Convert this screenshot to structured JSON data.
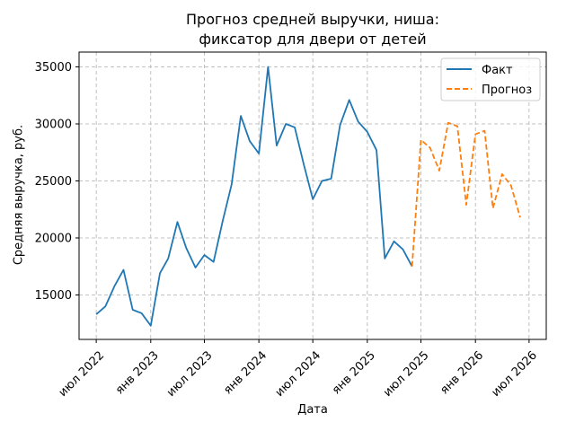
{
  "chart_data": {
    "type": "line",
    "title_lines": [
      "Прогноз средней выручки, ниша:",
      "фиксатор для двери от детей"
    ],
    "xlabel": "Дата",
    "ylabel": "Средняя выручка, руб.",
    "xlim": [
      "2022-05-04",
      "2026-08-28"
    ],
    "ylim": [
      11100,
      36300
    ],
    "grid": true,
    "legend_position": "top-right",
    "x_ticks": [
      {
        "date": "2022-07-01",
        "label": "июл 2022"
      },
      {
        "date": "2023-01-01",
        "label": "янв 2023"
      },
      {
        "date": "2023-07-01",
        "label": "июл 2023"
      },
      {
        "date": "2024-01-01",
        "label": "янв 2024"
      },
      {
        "date": "2024-07-01",
        "label": "июл 2024"
      },
      {
        "date": "2025-01-01",
        "label": "янв 2025"
      },
      {
        "date": "2025-07-01",
        "label": "июл 2025"
      },
      {
        "date": "2026-01-01",
        "label": "янв 2026"
      },
      {
        "date": "2026-07-01",
        "label": "июл 2026"
      }
    ],
    "y_ticks": [
      {
        "value": 15000,
        "label": "15000"
      },
      {
        "value": 20000,
        "label": "20000"
      },
      {
        "value": 25000,
        "label": "25000"
      },
      {
        "value": 30000,
        "label": "30000"
      },
      {
        "value": 35000,
        "label": "35000"
      }
    ],
    "series": [
      {
        "name": "Факт",
        "color": "#1f77b4",
        "style": "solid",
        "points": [
          {
            "x": "2022-07-01",
            "y": 13300
          },
          {
            "x": "2022-08-01",
            "y": 14000
          },
          {
            "x": "2022-09-01",
            "y": 15800
          },
          {
            "x": "2022-10-01",
            "y": 17200
          },
          {
            "x": "2022-11-01",
            "y": 13700
          },
          {
            "x": "2022-12-01",
            "y": 13400
          },
          {
            "x": "2023-01-01",
            "y": 12300
          },
          {
            "x": "2023-02-01",
            "y": 16900
          },
          {
            "x": "2023-03-01",
            "y": 18200
          },
          {
            "x": "2023-04-01",
            "y": 21400
          },
          {
            "x": "2023-05-01",
            "y": 19100
          },
          {
            "x": "2023-06-01",
            "y": 17400
          },
          {
            "x": "2023-07-01",
            "y": 18500
          },
          {
            "x": "2023-08-01",
            "y": 17900
          },
          {
            "x": "2023-09-01",
            "y": 21500
          },
          {
            "x": "2023-10-01",
            "y": 24700
          },
          {
            "x": "2023-11-01",
            "y": 30700
          },
          {
            "x": "2023-12-01",
            "y": 28500
          },
          {
            "x": "2024-01-01",
            "y": 27400
          },
          {
            "x": "2024-02-01",
            "y": 35000
          },
          {
            "x": "2024-03-01",
            "y": 28100
          },
          {
            "x": "2024-04-01",
            "y": 30000
          },
          {
            "x": "2024-05-01",
            "y": 29700
          },
          {
            "x": "2024-06-01",
            "y": 26400
          },
          {
            "x": "2024-07-01",
            "y": 23400
          },
          {
            "x": "2024-08-01",
            "y": 25000
          },
          {
            "x": "2024-09-01",
            "y": 25200
          },
          {
            "x": "2024-10-01",
            "y": 29900
          },
          {
            "x": "2024-11-01",
            "y": 32100
          },
          {
            "x": "2024-12-01",
            "y": 30200
          },
          {
            "x": "2025-01-01",
            "y": 29300
          },
          {
            "x": "2025-02-01",
            "y": 27700
          },
          {
            "x": "2025-03-01",
            "y": 18200
          },
          {
            "x": "2025-04-01",
            "y": 19700
          },
          {
            "x": "2025-05-01",
            "y": 19000
          },
          {
            "x": "2025-06-01",
            "y": 17500
          }
        ]
      },
      {
        "name": "Прогноз",
        "color": "#ff7f0e",
        "style": "dashed",
        "points": [
          {
            "x": "2025-06-01",
            "y": 17500
          },
          {
            "x": "2025-07-01",
            "y": 28600
          },
          {
            "x": "2025-08-01",
            "y": 27900
          },
          {
            "x": "2025-09-01",
            "y": 25900
          },
          {
            "x": "2025-10-01",
            "y": 30100
          },
          {
            "x": "2025-11-01",
            "y": 29800
          },
          {
            "x": "2025-12-01",
            "y": 22900
          },
          {
            "x": "2026-01-01",
            "y": 29100
          },
          {
            "x": "2026-02-01",
            "y": 29400
          },
          {
            "x": "2026-03-01",
            "y": 22600
          },
          {
            "x": "2026-04-01",
            "y": 25600
          },
          {
            "x": "2026-05-01",
            "y": 24600
          },
          {
            "x": "2026-06-01",
            "y": 21800
          }
        ]
      }
    ]
  }
}
